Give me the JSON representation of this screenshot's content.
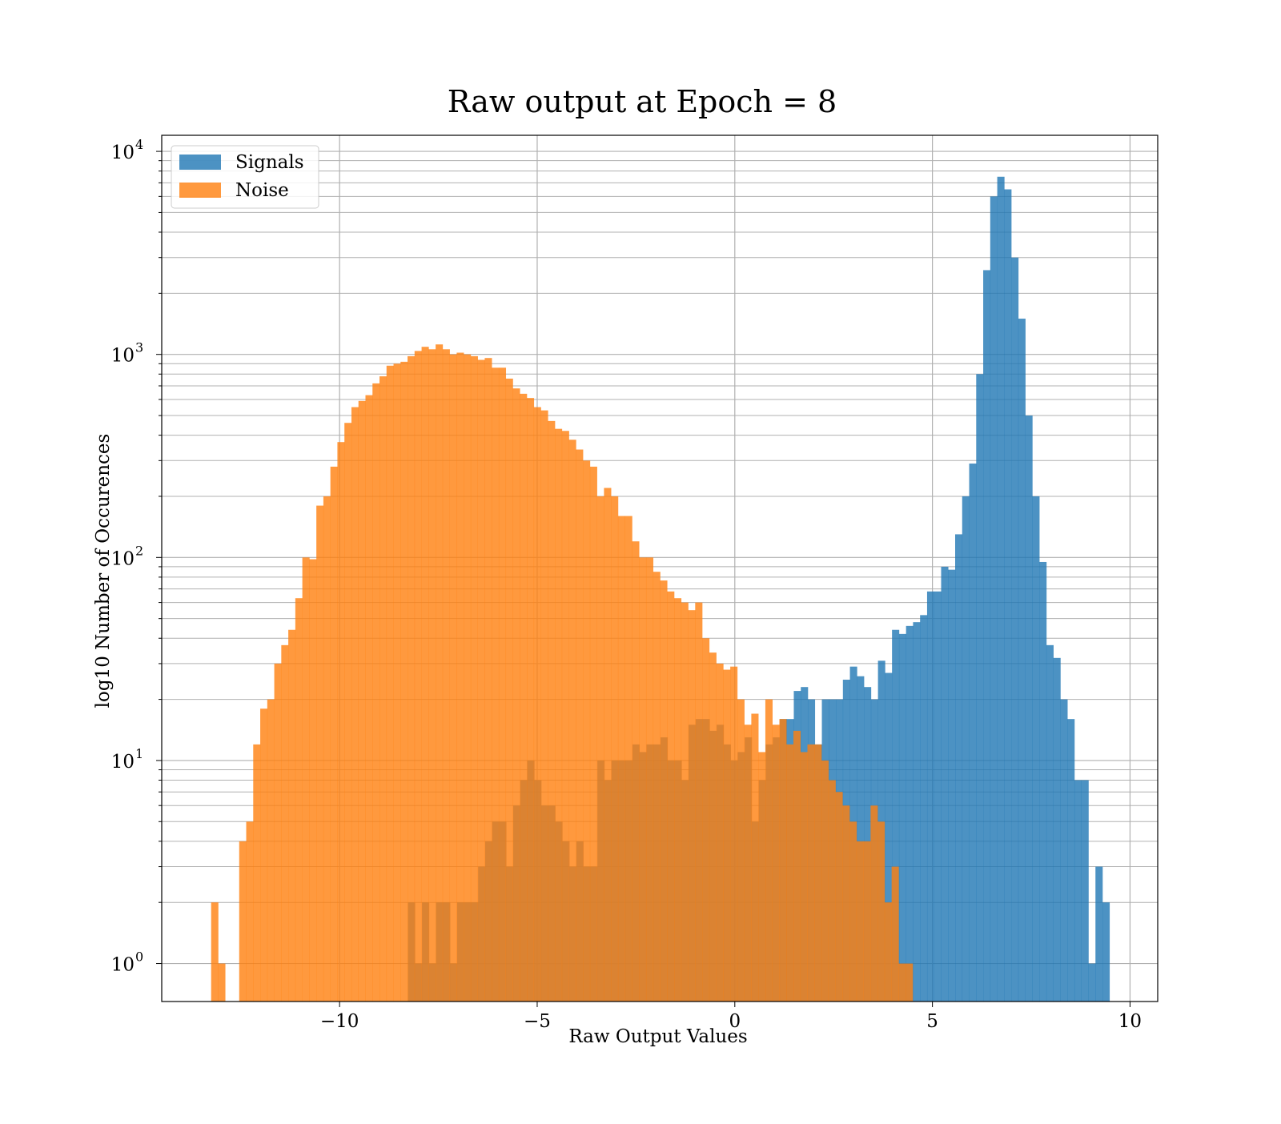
{
  "chart_data": {
    "type": "bar",
    "title": "Raw output at Epoch = 8",
    "xlabel": "Raw Output Values",
    "ylabel": "log10 Number of Occurences",
    "xlim": [
      -14.5,
      10.7
    ],
    "ylim": [
      0.65,
      12000
    ],
    "yscale": "log",
    "grid": true,
    "legend_position": "top-left",
    "x_ticks": [
      {
        "value": -10,
        "label": "−10"
      },
      {
        "value": -5,
        "label": "−5"
      },
      {
        "value": 0,
        "label": "0"
      },
      {
        "value": 5,
        "label": "5"
      },
      {
        "value": 10,
        "label": "10"
      }
    ],
    "y_ticks": [
      {
        "value": 1,
        "base": "10",
        "exp": "0"
      },
      {
        "value": 10,
        "base": "10",
        "exp": "1"
      },
      {
        "value": 100,
        "base": "10",
        "exp": "2"
      },
      {
        "value": 1000,
        "base": "10",
        "exp": "3"
      },
      {
        "value": 10000,
        "base": "10",
        "exp": "4"
      }
    ],
    "series": [
      {
        "name": "Signals",
        "color": "#1f77b4",
        "opacity": 0.8,
        "start": -8.27,
        "bin_width": 0.1775,
        "counts": [
          2,
          1,
          2,
          1,
          2,
          2,
          1,
          2,
          2,
          2,
          3,
          4,
          5,
          5,
          3,
          6,
          8,
          10,
          8,
          6,
          6,
          5,
          4,
          3,
          4,
          3,
          3,
          10,
          8,
          10,
          10,
          10,
          12,
          11,
          12,
          12,
          13,
          10,
          10,
          8,
          15,
          16,
          16,
          14,
          15,
          12,
          10,
          11,
          13,
          5,
          8,
          12,
          13,
          16,
          16,
          22,
          23,
          20,
          12,
          20,
          20,
          20,
          25,
          29,
          26,
          23,
          20,
          31,
          27,
          44,
          42,
          46,
          48,
          52,
          68,
          68,
          90,
          87,
          130,
          200,
          290,
          800,
          2600,
          6000,
          7500,
          6500,
          3000,
          1500,
          500,
          200,
          95,
          37,
          32,
          20,
          16,
          8,
          8,
          1,
          3,
          2
        ]
      },
      {
        "name": "Noise",
        "color": "#ff7f0e",
        "opacity": 0.8,
        "start": -13.25,
        "bin_width": 0.1775,
        "counts": [
          2,
          1,
          0,
          0,
          4,
          5,
          12,
          18,
          20,
          30,
          37,
          44,
          63,
          100,
          98,
          180,
          200,
          280,
          370,
          460,
          550,
          590,
          630,
          720,
          780,
          880,
          900,
          920,
          980,
          1040,
          1090,
          1060,
          1120,
          1060,
          1000,
          1020,
          1000,
          980,
          940,
          960,
          860,
          860,
          760,
          680,
          640,
          610,
          550,
          530,
          470,
          430,
          420,
          380,
          340,
          300,
          280,
          200,
          220,
          200,
          160,
          160,
          120,
          100,
          100,
          85,
          77,
          68,
          63,
          60,
          55,
          60,
          40,
          34,
          30,
          28,
          29,
          20,
          15,
          17,
          11,
          20,
          15,
          16,
          12,
          14,
          11,
          12,
          12,
          10,
          8,
          7,
          6,
          5,
          4,
          4,
          6,
          5,
          2,
          3,
          1,
          1
        ]
      }
    ]
  }
}
